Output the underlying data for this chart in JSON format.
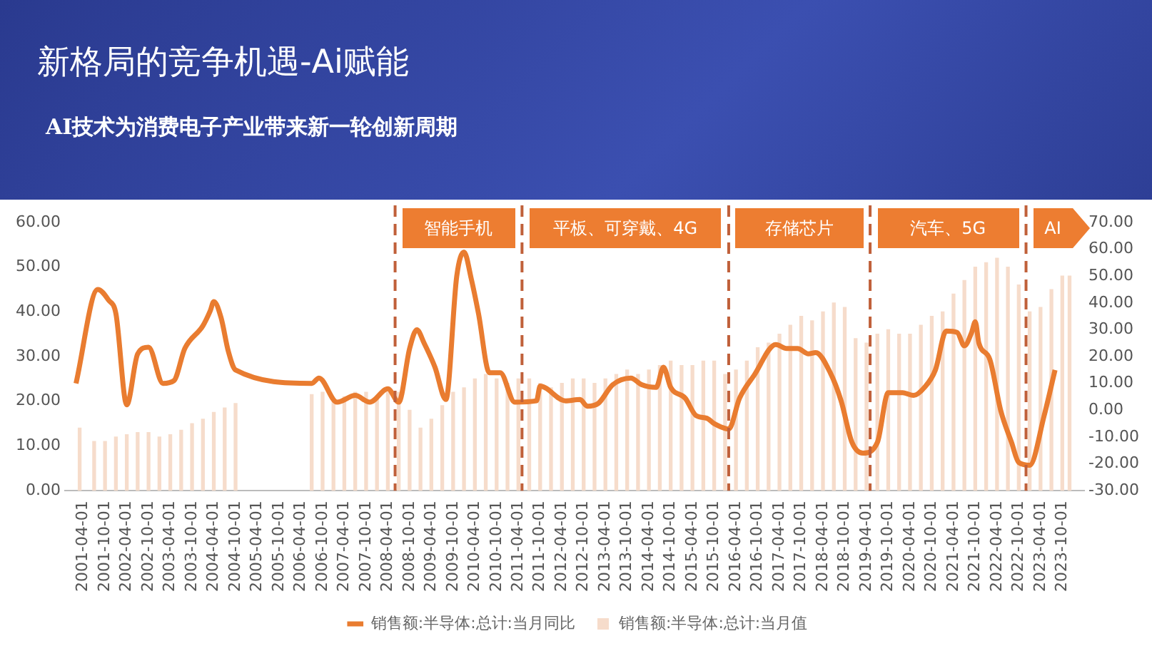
{
  "chart_data": {
    "type": "bar",
    "title": "新格局的竞争机遇-Ai赋能",
    "subtitle": "AI技术为消费电子产业带来新一轮创新周期",
    "xlim": [
      "2001-02",
      "2024-01"
    ],
    "xticks": [
      "2001-04-01",
      "2001-10-01",
      "2002-04-01",
      "2002-10-01",
      "2003-04-01",
      "2003-10-01",
      "2004-04-01",
      "2004-10-01",
      "2005-04-01",
      "2005-10-01",
      "2006-04-01",
      "2006-10-01",
      "2007-04-01",
      "2007-10-01",
      "2008-04-01",
      "2008-10-01",
      "2009-04-01",
      "2009-10-01",
      "2010-04-01",
      "2010-10-01",
      "2011-04-01",
      "2011-10-01",
      "2012-04-01",
      "2012-10-01",
      "2013-04-01",
      "2013-10-01",
      "2014-04-01",
      "2014-10-01",
      "2015-04-01",
      "2015-10-01",
      "2016-04-01",
      "2016-10-01",
      "2017-04-01",
      "2017-10-01",
      "2018-04-01",
      "2018-10-01",
      "2019-04-01",
      "2019-10-01",
      "2020-04-01",
      "2020-10-01",
      "2021-04-01",
      "2021-10-01",
      "2022-04-01",
      "2022-10-01",
      "2023-04-01",
      "2023-10-01"
    ],
    "ylim": [
      0,
      60
    ],
    "yticks": [
      {
        "value": 0,
        "label": "0.00"
      },
      {
        "value": 10,
        "label": "10.00"
      },
      {
        "value": 20,
        "label": "20.00"
      },
      {
        "value": 30,
        "label": "30.00"
      },
      {
        "value": 40,
        "label": "40.00"
      },
      {
        "value": 50,
        "label": "50.00"
      },
      {
        "value": 60,
        "label": "60.00"
      }
    ],
    "y2lim": [
      -30,
      70
    ],
    "y2ticks": [
      {
        "value": -30,
        "label": "-30.00"
      },
      {
        "value": -20,
        "label": "-20.00"
      },
      {
        "value": -10,
        "label": "-10.00"
      },
      {
        "value": 0,
        "label": "0.00"
      },
      {
        "value": 10,
        "label": "10.00"
      },
      {
        "value": 20,
        "label": "20.00"
      },
      {
        "value": 30,
        "label": "30.00"
      },
      {
        "value": 40,
        "label": "40.00"
      },
      {
        "value": 50,
        "label": "50.00"
      },
      {
        "value": 60,
        "label": "60.00"
      },
      {
        "value": 70,
        "label": "70.00"
      }
    ],
    "legend": "bottom",
    "marker": "none",
    "series": [
      {
        "name": "销售额:半导体:总计:当月值",
        "color": "#f6dccb",
        "x": [
          "2001-03",
          "2001-07",
          "2001-10",
          "2002-01",
          "2002-04",
          "2002-07",
          "2002-10",
          "2003-01",
          "2003-04",
          "2003-07",
          "2003-10",
          "2004-01",
          "2004-04",
          "2004-07",
          "2004-10",
          "2006-07",
          "2006-10",
          "2007-01",
          "2007-04",
          "2007-07",
          "2007-10",
          "2008-01",
          "2008-04",
          "2008-07",
          "2008-10",
          "2009-01",
          "2009-04",
          "2009-07",
          "2009-10",
          "2010-01",
          "2010-04",
          "2010-07",
          "2010-10",
          "2011-01",
          "2011-04",
          "2011-07",
          "2011-10",
          "2012-01",
          "2012-04",
          "2012-07",
          "2012-10",
          "2013-01",
          "2013-04",
          "2013-07",
          "2013-10",
          "2014-01",
          "2014-04",
          "2014-07",
          "2014-10",
          "2015-01",
          "2015-04",
          "2015-07",
          "2015-10",
          "2016-01",
          "2016-04",
          "2016-07",
          "2016-10",
          "2017-01",
          "2017-04",
          "2017-07",
          "2017-10",
          "2018-01",
          "2018-04",
          "2018-07",
          "2018-10",
          "2019-01",
          "2019-04",
          "2019-07",
          "2019-10",
          "2020-01",
          "2020-04",
          "2020-07",
          "2020-10",
          "2021-01",
          "2021-04",
          "2021-07",
          "2021-10",
          "2022-01",
          "2022-04",
          "2022-07",
          "2022-10",
          "2023-01",
          "2023-04",
          "2023-07",
          "2023-10",
          "2023-12"
        ],
        "values": [
          14,
          11,
          11,
          12,
          12.5,
          13,
          13,
          12,
          12.5,
          13.5,
          15,
          16,
          17.5,
          18.5,
          19.5,
          21.5,
          22,
          20,
          21,
          22,
          22,
          21,
          22,
          22,
          18,
          14,
          16,
          19,
          22,
          23,
          25,
          26,
          25,
          24,
          25,
          25,
          24,
          23,
          24,
          25,
          25,
          24,
          25,
          26,
          27,
          26,
          27,
          28,
          29,
          28,
          28,
          29,
          29,
          26,
          27,
          29,
          32,
          33,
          35,
          37,
          39,
          38,
          40,
          42,
          41,
          34,
          33,
          35,
          36,
          35,
          35,
          37,
          39,
          40,
          44,
          47,
          50,
          51,
          52,
          50,
          46,
          40,
          41,
          45,
          48,
          48
        ]
      },
      {
        "name": "销售额:半导体:总计:当月同比",
        "type": "line",
        "axis": "y2",
        "color": "#e97c30",
        "x": [
          "2001-02",
          "2001-08",
          "2001-11",
          "2002-01",
          "2002-04",
          "2002-07",
          "2002-10",
          "2003-02",
          "2003-05",
          "2003-08",
          "2004-01",
          "2004-03",
          "2004-04",
          "2004-06",
          "2004-08",
          "2004-10",
          "2006-07",
          "2006-09",
          "2007-02",
          "2007-07",
          "2007-11",
          "2008-04",
          "2008-07",
          "2008-10",
          "2008-12",
          "2009-02",
          "2009-05",
          "2009-08",
          "2009-11",
          "2010-01",
          "2010-03",
          "2010-05",
          "2010-08",
          "2010-11",
          "2011-03",
          "2011-09",
          "2011-10",
          "2012-05",
          "2012-09",
          "2012-11",
          "2013-02",
          "2013-06",
          "2013-11",
          "2014-02",
          "2014-06",
          "2014-08",
          "2014-10",
          "2015-02",
          "2015-05",
          "2015-08",
          "2015-10",
          "2016-02",
          "2016-05",
          "2016-09",
          "2017-03",
          "2017-06",
          "2017-09",
          "2017-12",
          "2018-02",
          "2018-06",
          "2018-09",
          "2018-12",
          "2019-03",
          "2019-07",
          "2019-10",
          "2020-02",
          "2020-05",
          "2020-08",
          "2020-11",
          "2021-02",
          "2021-05",
          "2021-07",
          "2021-09",
          "2021-10",
          "2021-11",
          "2022-02",
          "2022-05",
          "2022-08",
          "2022-10",
          "2023-01",
          "2023-05",
          "2023-08"
        ],
        "values": [
          10,
          45,
          41,
          36,
          2,
          21,
          23.5,
          10,
          11,
          23,
          31.5,
          37,
          40.5,
          34.5,
          22,
          15,
          10,
          12,
          3,
          5.5,
          3,
          8,
          3,
          23,
          30,
          25,
          16,
          4,
          50,
          59,
          49,
          36,
          14,
          14,
          3,
          3.5,
          9,
          3.5,
          4,
          1.5,
          2.5,
          9.5,
          12,
          9.5,
          8.5,
          16,
          8.5,
          4.5,
          -2,
          -3,
          -5,
          -7,
          4.5,
          13,
          24.5,
          23,
          23,
          21,
          21.5,
          14,
          3.5,
          -12,
          -16,
          -12,
          6.5,
          6.5,
          5.5,
          8.5,
          15,
          29.5,
          29,
          24,
          29,
          33,
          25,
          19,
          0,
          -12,
          -19.5,
          -20.5,
          -2,
          15
        ]
      }
    ],
    "ref_lines": [
      {
        "axis": "x",
        "value": "2008-06",
        "color": "#c0603a",
        "line_style": "dashed"
      },
      {
        "axis": "x",
        "value": "2011-05",
        "color": "#c0603a",
        "line_style": "dashed"
      },
      {
        "axis": "x",
        "value": "2016-02",
        "color": "#c0603a",
        "line_style": "dashed"
      },
      {
        "axis": "x",
        "value": "2019-05",
        "color": "#c0603a",
        "line_style": "dashed"
      },
      {
        "axis": "x",
        "value": "2022-12",
        "color": "#c0603a",
        "line_style": "dashed"
      }
    ],
    "annotations": [
      "智能手机",
      "平板、可穿戴、4G",
      "存储芯片",
      "汽车、5G",
      "AI"
    ]
  }
}
